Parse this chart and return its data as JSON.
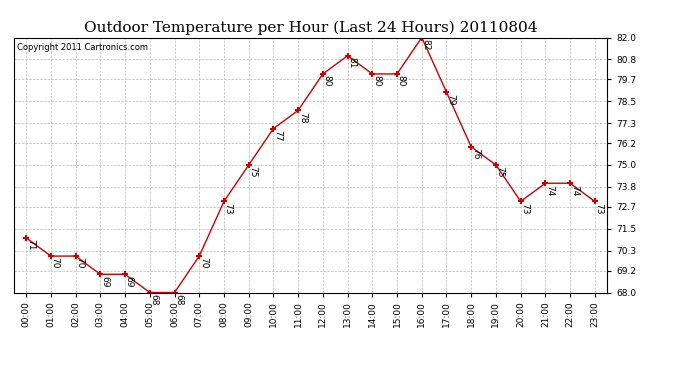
{
  "title": "Outdoor Temperature per Hour (Last 24 Hours) 20110804",
  "copyright_text": "Copyright 2011 Cartronics.com",
  "hours": [
    "00:00",
    "01:00",
    "02:00",
    "03:00",
    "04:00",
    "05:00",
    "06:00",
    "07:00",
    "08:00",
    "09:00",
    "10:00",
    "11:00",
    "12:00",
    "13:00",
    "14:00",
    "15:00",
    "16:00",
    "17:00",
    "18:00",
    "19:00",
    "20:00",
    "21:00",
    "22:00",
    "23:00"
  ],
  "temps": [
    71,
    70,
    70,
    69,
    69,
    68,
    68,
    70,
    73,
    75,
    77,
    78,
    80,
    81,
    80,
    80,
    82,
    79,
    76,
    75,
    73,
    74,
    74,
    73
  ],
  "ylim": [
    68.0,
    82.0
  ],
  "yticks": [
    68.0,
    69.2,
    70.3,
    71.5,
    72.7,
    73.8,
    75.0,
    76.2,
    77.3,
    78.5,
    79.7,
    80.8,
    82.0
  ],
  "line_color": "#cc0000",
  "marker_color": "#cc0000",
  "grid_color": "#bbbbbb",
  "bg_color": "#ffffff",
  "title_fontsize": 11,
  "annot_fontsize": 6.5,
  "tick_fontsize": 6.5,
  "copyright_fontsize": 6
}
